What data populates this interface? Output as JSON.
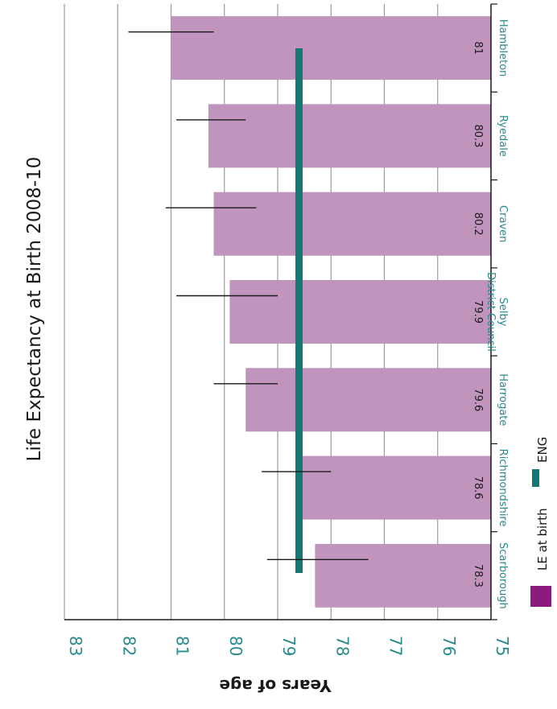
{
  "chart_data": {
    "type": "bar",
    "orientation": "horizontal (chart image rotated 90 degrees)",
    "title": "Life Expectancy at Birth 2008-10",
    "ylabel": "Years of age",
    "categories": [
      "Hambleton",
      "Ryedale",
      "Craven",
      "Selby District Council",
      "Harrogate",
      "Richmondshire",
      "Scarborough"
    ],
    "category_lines": [
      [
        "Hambleton"
      ],
      [
        "Ryedale"
      ],
      [
        "Craven"
      ],
      [
        "Selby",
        "District Council"
      ],
      [
        "Harrogate"
      ],
      [
        "Richmondshire"
      ],
      [
        "Scarborough"
      ]
    ],
    "series": [
      {
        "name": "LE at birth",
        "color": "#c094bc",
        "legend_color": "#8a1a7e",
        "values": [
          81,
          80.3,
          80.2,
          79.9,
          79.6,
          78.6,
          78.3
        ],
        "labels": [
          "81",
          "80.3",
          "80.2",
          "79.9",
          "79.6",
          "78.6",
          "78.3"
        ],
        "ci_low": [
          80.2,
          79.6,
          79.4,
          79.0,
          79.0,
          78.0,
          77.3
        ],
        "ci_high": [
          81.8,
          80.9,
          81.1,
          80.9,
          80.2,
          79.3,
          79.2
        ]
      },
      {
        "name": "ENG",
        "color": "#137874",
        "value": 78.6
      }
    ],
    "ylim": [
      75,
      83
    ],
    "ticks": [
      75,
      76,
      77,
      78,
      79,
      80,
      81,
      82,
      83
    ],
    "tick_labels": [
      "75",
      "76",
      "77",
      "78",
      "79",
      "80",
      "81",
      "82",
      "83"
    ],
    "grid": true,
    "legend_position": "bottom-left"
  }
}
